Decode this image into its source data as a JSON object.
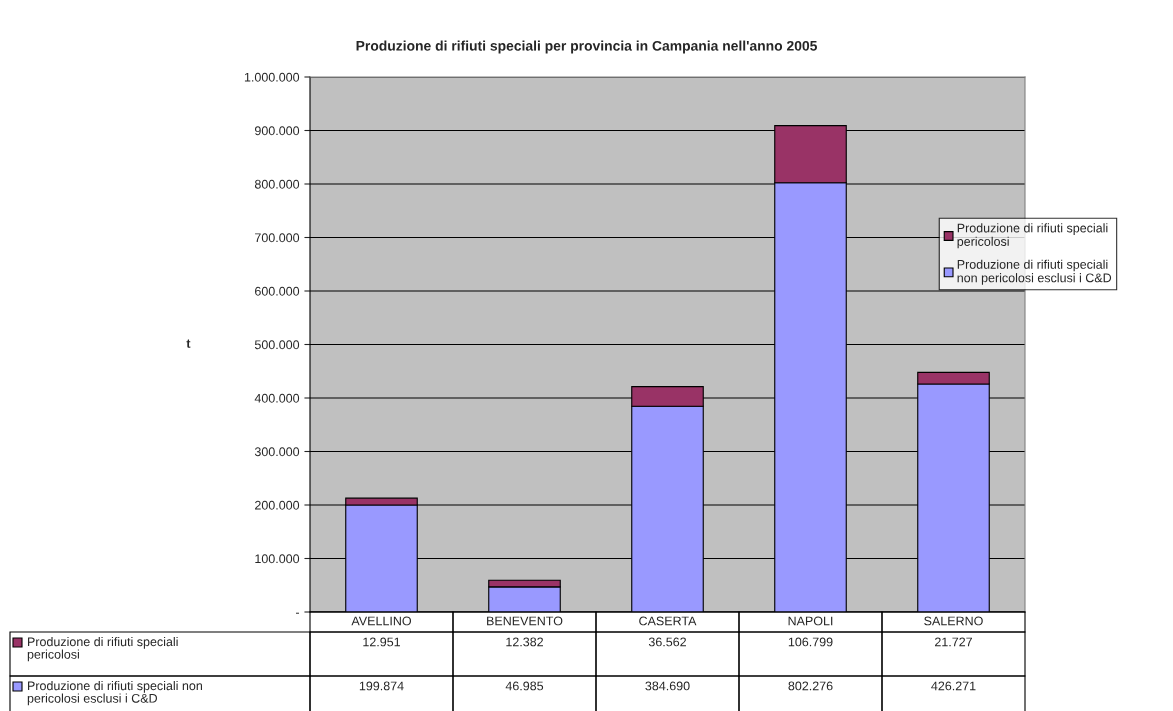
{
  "chart_data": {
    "type": "bar",
    "title": "Produzione di rifiuti speciali per provincia in Campania nell'anno 2005",
    "ylabel": "t",
    "categories": [
      "AVELLINO",
      "BENEVENTO",
      "CASERTA",
      "NAPOLI",
      "SALERNO"
    ],
    "stacked": true,
    "series": [
      {
        "name": "Produzione di rifiuti speciali non pericolosi esclusi i C&D",
        "color": "#9999ff",
        "values": [
          199874,
          46985,
          384690,
          802276,
          426271
        ],
        "value_labels": [
          "199.874",
          "46.985",
          "384.690",
          "802.276",
          "426.271"
        ]
      },
      {
        "name": "Produzione di rifiuti speciali pericolosi",
        "color": "#993366",
        "values": [
          12951,
          12382,
          36562,
          106799,
          21727
        ],
        "value_labels": [
          "12.951",
          "12.382",
          "36.562",
          "106.799",
          "21.727"
        ]
      }
    ],
    "ylim": [
      0,
      1000000
    ],
    "yticks": [
      {
        "value": 0,
        "label": "-"
      },
      {
        "value": 100000,
        "label": "100.000"
      },
      {
        "value": 200000,
        "label": "200.000"
      },
      {
        "value": 300000,
        "label": "300.000"
      },
      {
        "value": 400000,
        "label": "400.000"
      },
      {
        "value": 500000,
        "label": "500.000"
      },
      {
        "value": 600000,
        "label": "600.000"
      },
      {
        "value": 700000,
        "label": "700.000"
      },
      {
        "value": 800000,
        "label": "800.000"
      },
      {
        "value": 900000,
        "label": "900.000"
      },
      {
        "value": 1000000,
        "label": "1.000.000"
      }
    ],
    "grid": "y",
    "legend": "right"
  }
}
